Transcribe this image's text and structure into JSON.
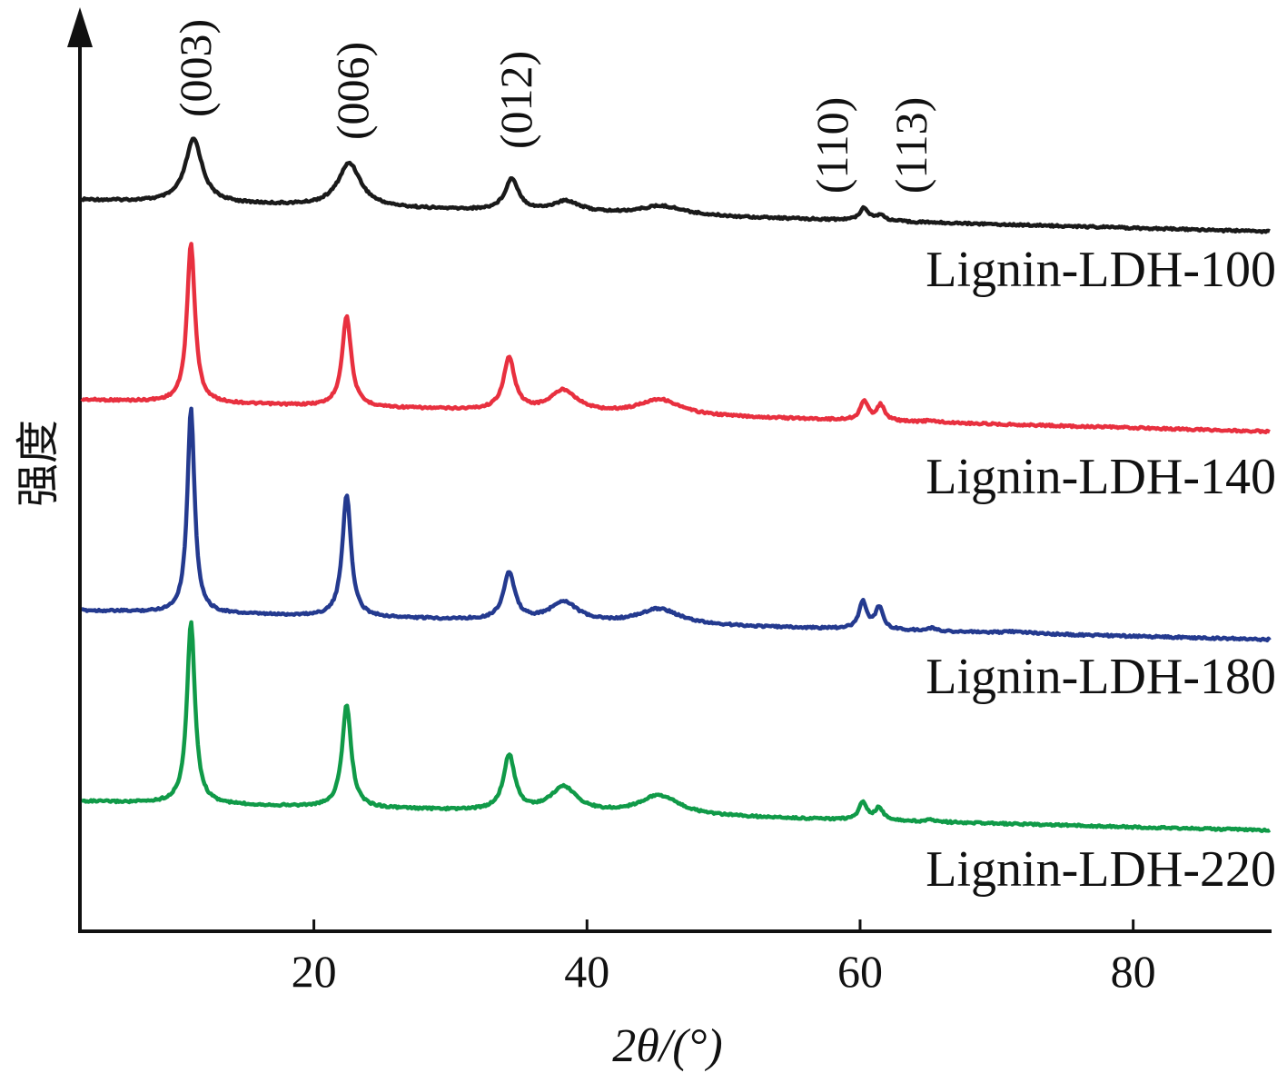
{
  "chart_data": {
    "type": "line",
    "xlabel": "2θ/(°)",
    "ylabel": "强度",
    "xlim": [
      3,
      90
    ],
    "xticks": [
      20,
      40,
      60,
      80
    ],
    "yaxis_ticks": false,
    "grid": false,
    "legend": "inline-labels-right",
    "peak_annotations": [
      {
        "label": "(003)",
        "x": 11.2
      },
      {
        "label": "(006)",
        "x": 22.6
      },
      {
        "label": "(012)",
        "x": 34.5
      },
      {
        "label": "(110)",
        "x": 60.0
      },
      {
        "label": "(113)",
        "x": 61.8
      }
    ],
    "series": [
      {
        "name": "Lignin-LDH-100",
        "color": "#1a1a1a",
        "baseline": 0.0,
        "peaks": [
          {
            "x": 11.2,
            "height": 0.7,
            "width": 0.75
          },
          {
            "x": 22.6,
            "height": 0.48,
            "width": 1.0
          },
          {
            "x": 34.5,
            "height": 0.35,
            "width": 0.6
          },
          {
            "x": 38.5,
            "height": 0.12,
            "width": 1.2
          },
          {
            "x": 45.5,
            "height": 0.1,
            "width": 2.0
          },
          {
            "x": 60.3,
            "height": 0.14,
            "width": 0.4
          },
          {
            "x": 61.5,
            "height": 0.06,
            "width": 0.4
          }
        ]
      },
      {
        "name": "Lignin-LDH-140",
        "color": "#e8303f",
        "baseline": 0.0,
        "peaks": [
          {
            "x": 11.0,
            "height": 1.85,
            "width": 0.35
          },
          {
            "x": 22.4,
            "height": 1.05,
            "width": 0.4
          },
          {
            "x": 34.3,
            "height": 0.6,
            "width": 0.5
          },
          {
            "x": 38.3,
            "height": 0.25,
            "width": 1.2
          },
          {
            "x": 45.3,
            "height": 0.18,
            "width": 1.8
          },
          {
            "x": 60.3,
            "height": 0.22,
            "width": 0.35
          },
          {
            "x": 61.5,
            "height": 0.18,
            "width": 0.35
          },
          {
            "x": 65.2,
            "height": 0.02,
            "width": 0.5
          }
        ]
      },
      {
        "name": "Lignin-LDH-180",
        "color": "#243a8f",
        "baseline": 0.0,
        "peaks": [
          {
            "x": 11.0,
            "height": 2.25,
            "width": 0.32
          },
          {
            "x": 22.4,
            "height": 1.35,
            "width": 0.38
          },
          {
            "x": 34.3,
            "height": 0.52,
            "width": 0.5
          },
          {
            "x": 38.3,
            "height": 0.22,
            "width": 1.2
          },
          {
            "x": 45.3,
            "height": 0.17,
            "width": 1.8
          },
          {
            "x": 60.2,
            "height": 0.3,
            "width": 0.35
          },
          {
            "x": 61.4,
            "height": 0.24,
            "width": 0.35
          },
          {
            "x": 65.2,
            "height": 0.03,
            "width": 0.5
          },
          {
            "x": 71.5,
            "height": 0.02,
            "width": 1.0
          }
        ]
      },
      {
        "name": "Lignin-LDH-220",
        "color": "#109a48",
        "baseline": 0.0,
        "peaks": [
          {
            "x": 11.0,
            "height": 2.05,
            "width": 0.35
          },
          {
            "x": 22.4,
            "height": 1.15,
            "width": 0.4
          },
          {
            "x": 34.3,
            "height": 0.62,
            "width": 0.5
          },
          {
            "x": 38.3,
            "height": 0.28,
            "width": 1.2
          },
          {
            "x": 45.3,
            "height": 0.22,
            "width": 1.8
          },
          {
            "x": 60.2,
            "height": 0.2,
            "width": 0.35
          },
          {
            "x": 61.4,
            "height": 0.14,
            "width": 0.35
          },
          {
            "x": 65.2,
            "height": 0.02,
            "width": 0.5
          }
        ]
      }
    ]
  }
}
